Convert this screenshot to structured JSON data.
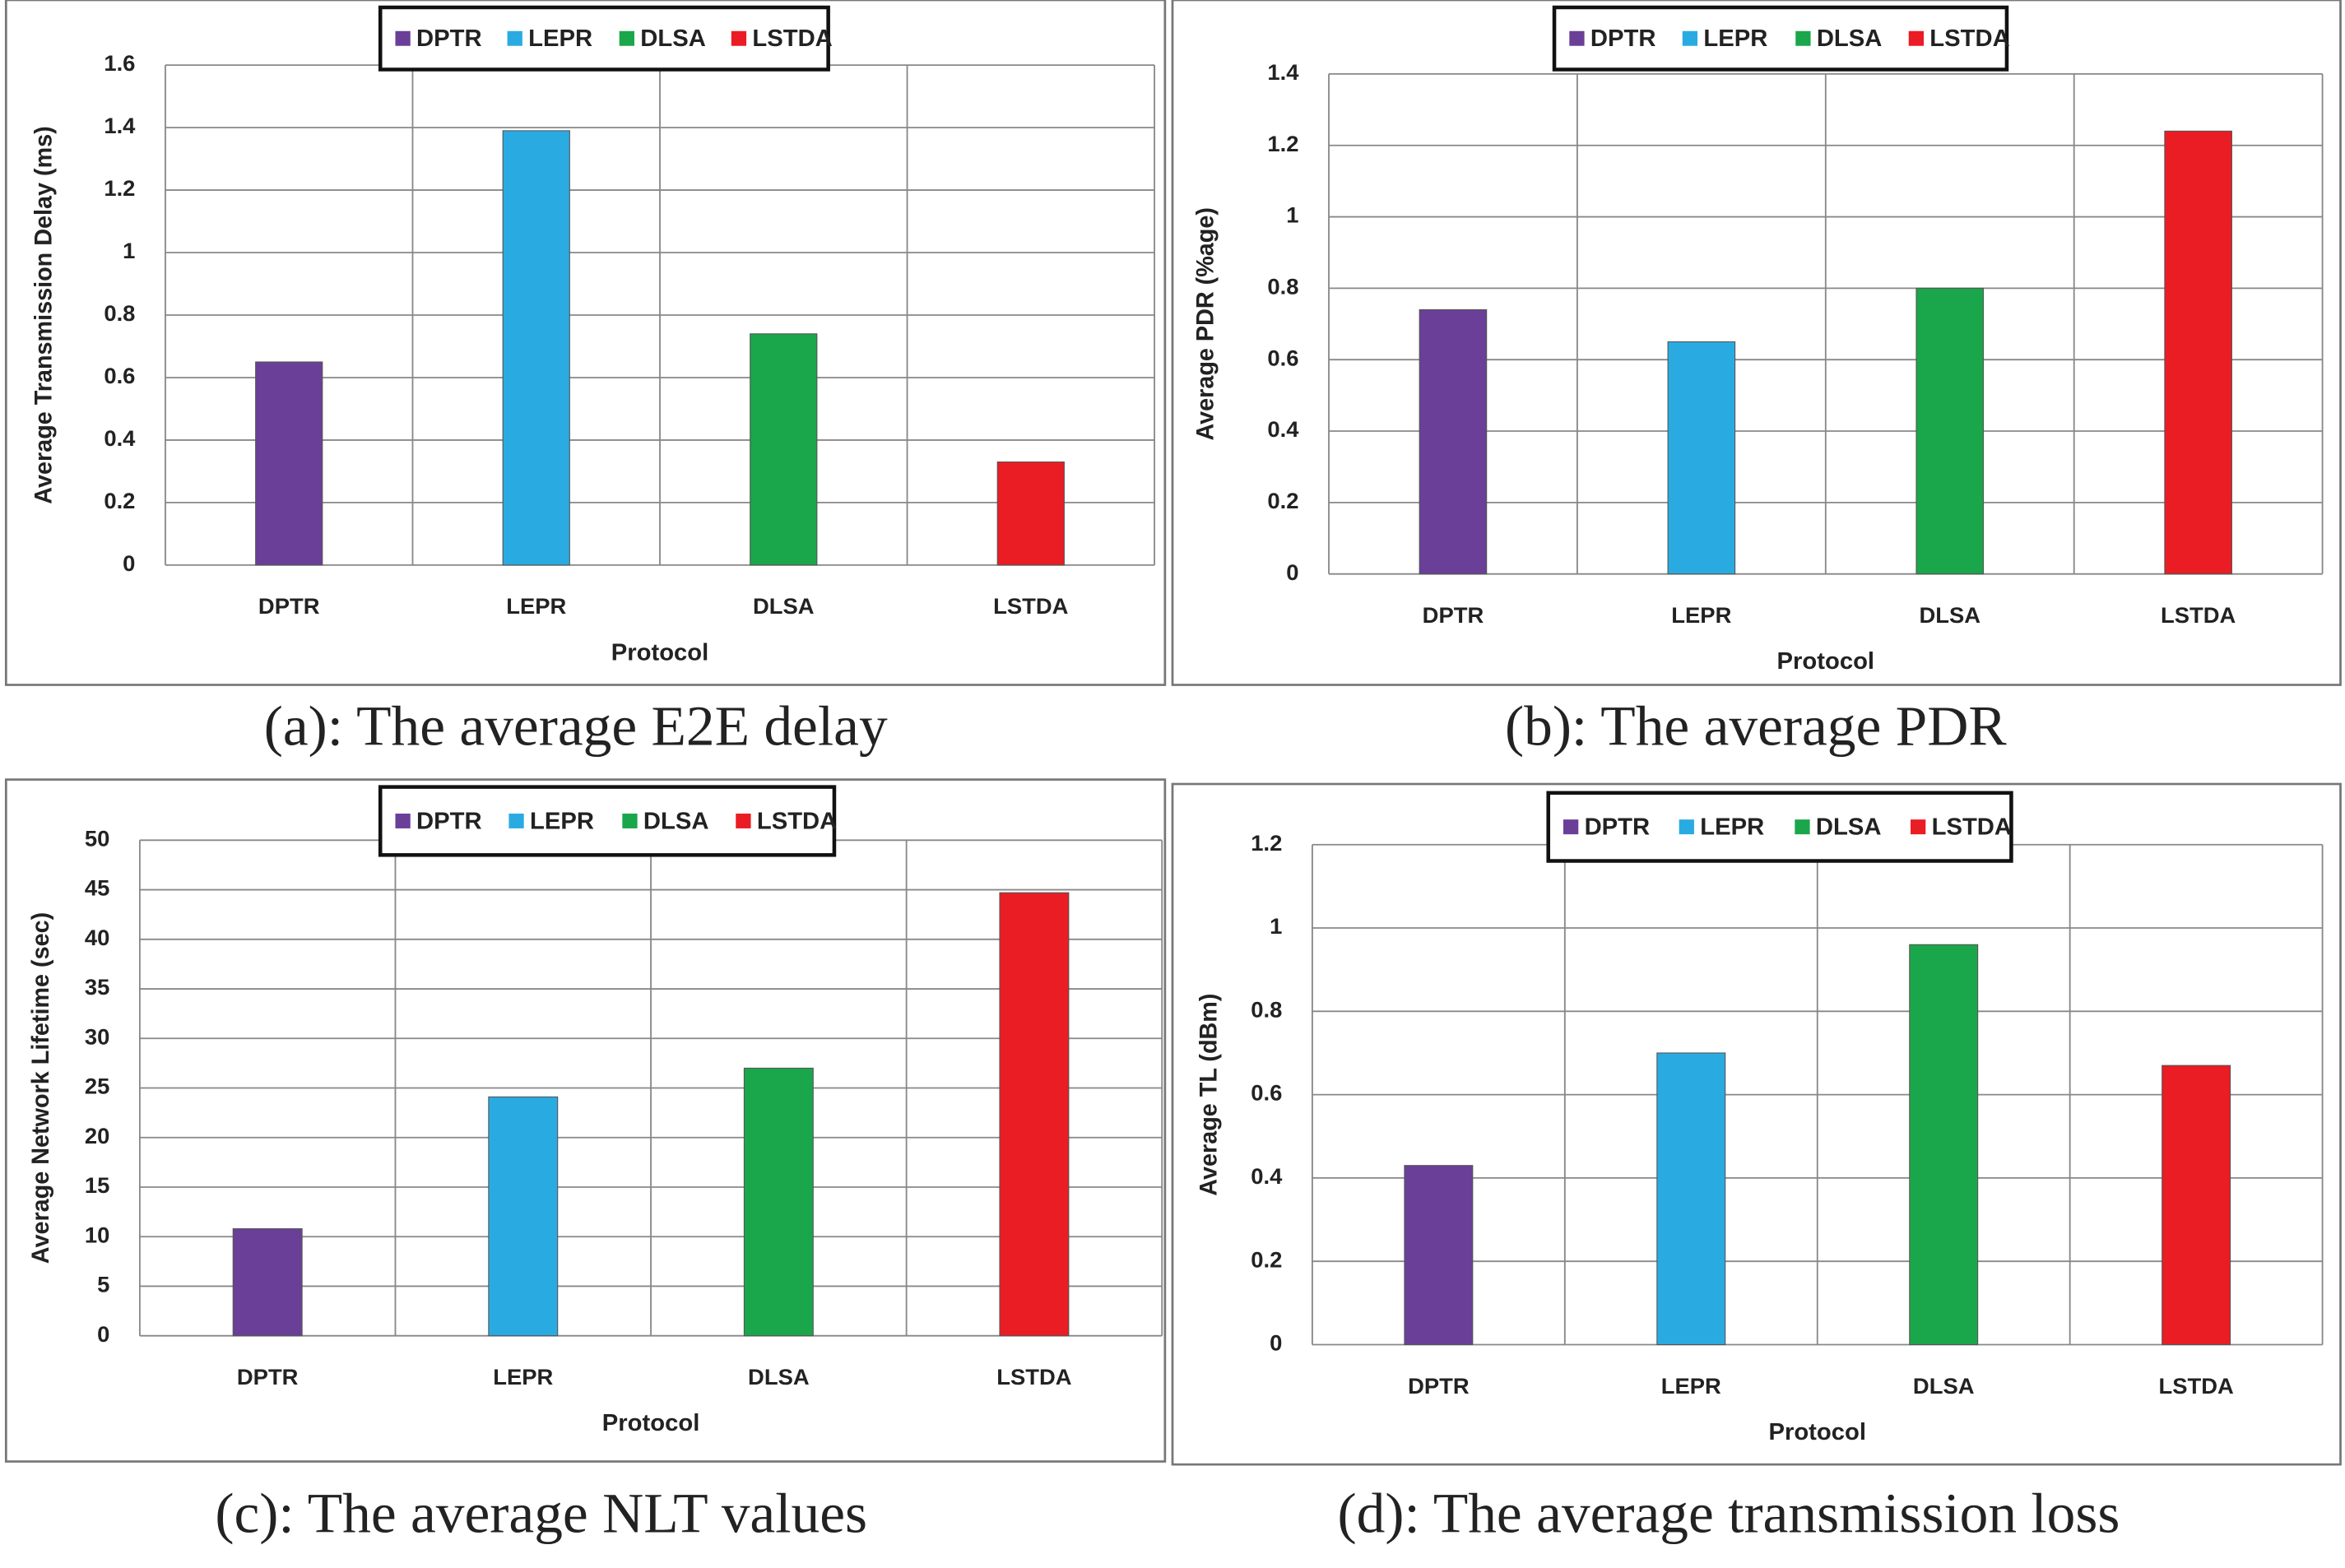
{
  "chart_data": [
    {
      "type": "bar",
      "caption": "(a): The average E2E delay",
      "x_label": "Protocol",
      "y_label": "Average Transmission  Delay (ms)",
      "categories": [
        "DPTR",
        "LEPR",
        "DLSA",
        "LSTDA"
      ],
      "series": [
        {
          "name": "DPTR",
          "color": "#6a3f98",
          "values": [
            0.65,
            null,
            null,
            null
          ]
        },
        {
          "name": "LEPR",
          "color": "#29abe2",
          "values": [
            null,
            1.39,
            null,
            null
          ]
        },
        {
          "name": "DLSA",
          "color": "#1aa64a",
          "values": [
            null,
            null,
            0.74,
            null
          ]
        },
        {
          "name": "LSTDA",
          "color": "#ea1c24",
          "values": [
            null,
            null,
            null,
            0.33
          ]
        }
      ],
      "ylim": [
        0,
        1.6
      ],
      "yticks": [
        0,
        0.2,
        0.4,
        0.6,
        0.8,
        1,
        1.2,
        1.4,
        1.6
      ],
      "grid": true,
      "legend": "top"
    },
    {
      "type": "bar",
      "caption": "(b): The average PDR",
      "x_label": "Protocol",
      "y_label": "Average PDR (%age)",
      "categories": [
        "DPTR",
        "LEPR",
        "DLSA",
        "LSTDA"
      ],
      "series": [
        {
          "name": "DPTR",
          "color": "#6a3f98",
          "values": [
            0.74,
            null,
            null,
            null
          ]
        },
        {
          "name": "LEPR",
          "color": "#29abe2",
          "values": [
            null,
            0.65,
            null,
            null
          ]
        },
        {
          "name": "DLSA",
          "color": "#1aa64a",
          "values": [
            null,
            null,
            0.8,
            null
          ]
        },
        {
          "name": "LSTDA",
          "color": "#ea1c24",
          "values": [
            null,
            null,
            null,
            1.24
          ]
        }
      ],
      "ylim": [
        0,
        1.4
      ],
      "yticks": [
        0,
        0.2,
        0.4,
        0.6,
        0.8,
        1,
        1.2,
        1.4
      ],
      "grid": true,
      "legend": "top"
    },
    {
      "type": "bar",
      "caption": "(c): The average NLT values",
      "x_label": "Protocol",
      "y_label": "Average Network Lifetime (sec)",
      "categories": [
        "DPTR",
        "LEPR",
        "DLSA",
        "LSTDA"
      ],
      "series": [
        {
          "name": "DPTR",
          "color": "#6a3f98",
          "values": [
            10.8,
            null,
            null,
            null
          ]
        },
        {
          "name": "LEPR",
          "color": "#29abe2",
          "values": [
            null,
            24.1,
            null,
            null
          ]
        },
        {
          "name": "DLSA",
          "color": "#1aa64a",
          "values": [
            null,
            null,
            27,
            null
          ]
        },
        {
          "name": "LSTDA",
          "color": "#ea1c24",
          "values": [
            null,
            null,
            null,
            44.7
          ]
        }
      ],
      "ylim": [
        0,
        50
      ],
      "yticks": [
        0,
        5,
        10,
        15,
        20,
        25,
        30,
        35,
        40,
        45,
        50
      ],
      "grid": true,
      "legend": "top"
    },
    {
      "type": "bar",
      "caption": "(d): The average transmission loss",
      "x_label": "Protocol",
      "y_label": "Average TL (dBm)",
      "categories": [
        "DPTR",
        "LEPR",
        "DLSA",
        "LSTDA"
      ],
      "series": [
        {
          "name": "DPTR",
          "color": "#6a3f98",
          "values": [
            0.43,
            null,
            null,
            null
          ]
        },
        {
          "name": "LEPR",
          "color": "#29abe2",
          "values": [
            null,
            0.7,
            null,
            null
          ]
        },
        {
          "name": "DLSA",
          "color": "#1aa64a",
          "values": [
            null,
            null,
            0.96,
            null
          ]
        },
        {
          "name": "LSTDA",
          "color": "#ea1c24",
          "values": [
            null,
            null,
            null,
            0.67
          ]
        }
      ],
      "ylim": [
        0,
        1.2
      ],
      "yticks": [
        0,
        0.2,
        0.4,
        0.6,
        0.8,
        1,
        1.2
      ],
      "grid": true,
      "legend": "top"
    }
  ]
}
